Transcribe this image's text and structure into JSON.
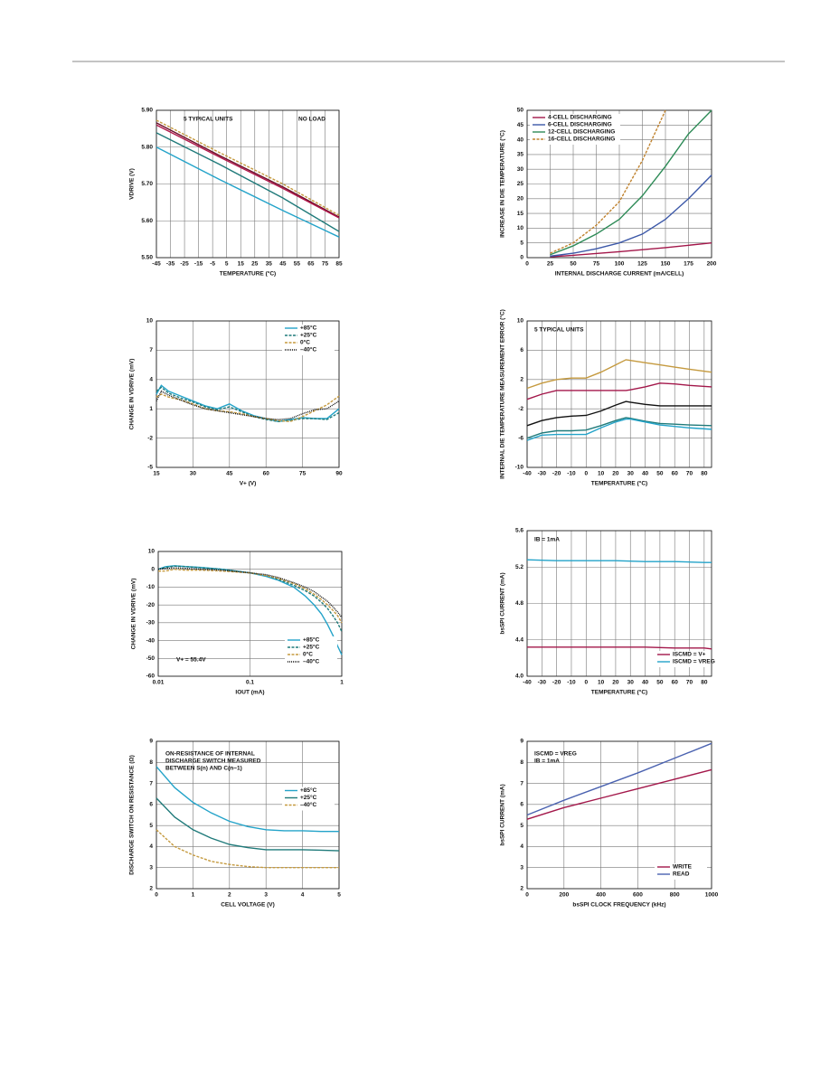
{
  "chart_data": [
    {
      "type": "line",
      "xlabel": "TEMPERATURE (°C)",
      "ylabel": "VDRIVE (V)",
      "xlim": [
        -45,
        85
      ],
      "xticks": [
        -45,
        -35,
        -25,
        -15,
        -5,
        5,
        15,
        25,
        35,
        45,
        55,
        65,
        75,
        85
      ],
      "ylim": [
        5.5,
        5.9
      ],
      "yticks": [
        {
          "value": 5.5,
          "label": "5.50"
        },
        {
          "value": 5.6,
          "label": "5.60"
        },
        {
          "value": 5.7,
          "label": "5.70"
        },
        {
          "value": 5.8,
          "label": "5.80"
        },
        {
          "value": 5.9,
          "label": "5.90"
        }
      ],
      "grid": true,
      "annotations": [
        [
          "5 TYPICAL UNITS"
        ],
        [
          "NO LOAD"
        ]
      ],
      "x": [
        -45,
        0,
        45,
        85
      ],
      "series": [
        {
          "color": "#c59a3f",
          "dash": true,
          "values": [
            5.873,
            5.785,
            5.7,
            5.615
          ]
        },
        {
          "color": "#6b0f2a",
          "values": [
            5.866,
            5.777,
            5.692,
            5.61
          ]
        },
        {
          "color": "#b0174a",
          "values": [
            5.86,
            5.773,
            5.688,
            5.608
          ]
        },
        {
          "color": "#1f7a7a",
          "values": [
            5.839,
            5.753,
            5.662,
            5.571
          ]
        },
        {
          "color": "#23a3c9",
          "values": [
            5.8,
            5.712,
            5.628,
            5.556
          ]
        }
      ]
    },
    {
      "type": "line",
      "xlabel": "INTERNAL DISCHARGE CURRENT (mA/CELL)",
      "ylabel": "INCREASE IN DIE TEMPERATURE (°C)",
      "xlim": [
        0,
        200
      ],
      "xticks": [
        0,
        25,
        50,
        75,
        100,
        125,
        150,
        175,
        200
      ],
      "ylim": [
        0,
        50
      ],
      "yticks": [
        0,
        5,
        10,
        15,
        20,
        25,
        30,
        35,
        40,
        45,
        50
      ],
      "grid": true,
      "legend": "upper left",
      "series": [
        {
          "name": "4-CELL DISCHARGING",
          "color": "#a3174a",
          "x": [
            25,
            50,
            100,
            150,
            200
          ],
          "values": [
            0.3,
            0.8,
            2,
            3.4,
            5
          ]
        },
        {
          "name": "6-CELL DISCHARGING",
          "color": "#3c58a8",
          "x": [
            25,
            50,
            75,
            100,
            125,
            150,
            175,
            200
          ],
          "values": [
            0.5,
            1.5,
            3,
            5,
            8,
            13,
            20,
            28
          ]
        },
        {
          "name": "12-CELL DISCHARGING",
          "color": "#2e8b57",
          "x": [
            25,
            50,
            75,
            100,
            125,
            150,
            175,
            200
          ],
          "values": [
            1,
            4,
            8,
            13,
            21,
            31,
            42,
            50
          ]
        },
        {
          "name": "16-CELL DISCHARGING",
          "color": "#c0832f",
          "dash": true,
          "x": [
            25,
            50,
            75,
            100,
            125,
            150
          ],
          "values": [
            1.5,
            5,
            11,
            19,
            33,
            50
          ]
        }
      ]
    },
    {
      "type": "line",
      "xlabel": "V+ (V)",
      "ylabel": "CHANGE IN VDRIVE (mV)",
      "xlim": [
        15,
        90
      ],
      "xticks": [
        15,
        30,
        45,
        60,
        75,
        90
      ],
      "ylim": [
        -5,
        10
      ],
      "yticks": [
        -5,
        -2,
        1,
        4,
        7,
        10
      ],
      "grid": true,
      "legend": "upper right",
      "x": [
        15,
        17,
        20,
        25,
        30,
        35,
        40,
        45,
        50,
        55,
        60,
        65,
        70,
        75,
        80,
        85,
        90
      ],
      "series": [
        {
          "name": "+85°C",
          "color": "#23a3c9",
          "values": [
            2.5,
            3.4,
            2.8,
            2.3,
            1.8,
            1.3,
            1.0,
            1.5,
            0.8,
            0.3,
            0.0,
            -0.3,
            -0.1,
            0.1,
            0.0,
            0.0,
            1.0
          ]
        },
        {
          "name": "+25°C",
          "color": "#1f7a7a",
          "dash": true,
          "values": [
            2.8,
            3.2,
            2.6,
            2.1,
            1.7,
            1.2,
            0.9,
            1.2,
            0.7,
            0.2,
            -0.1,
            -0.3,
            -0.2,
            0.0,
            0.0,
            -0.1,
            0.6
          ]
        },
        {
          "name": "0°C",
          "color": "#c59a3f",
          "dash": true,
          "values": [
            2.2,
            2.5,
            2.2,
            1.9,
            1.5,
            1.0,
            0.8,
            0.7,
            0.5,
            0.2,
            0.0,
            -0.2,
            -0.3,
            0.2,
            0.8,
            1.4,
            2.3
          ]
        },
        {
          "name": "–40°C",
          "color": "#111111",
          "dot": true,
          "values": [
            1.8,
            2.8,
            2.4,
            1.9,
            1.4,
            1.0,
            0.8,
            0.6,
            0.4,
            0.2,
            0.0,
            -0.1,
            0.0,
            0.5,
            0.9,
            1.0,
            1.8
          ]
        }
      ]
    },
    {
      "type": "line",
      "xlabel": "TEMPERATURE (°C)",
      "ylabel": "INTERNAL DIE TEMPERATURE MEASUREMENT ERROR (°C)",
      "xlim": [
        -40,
        85
      ],
      "xticks": [
        -40,
        -30,
        -20,
        -10,
        0,
        10,
        20,
        30,
        40,
        50,
        60,
        70,
        80
      ],
      "ylim": [
        -10,
        10
      ],
      "yticks": [
        -10,
        -6,
        -2,
        2,
        6,
        10
      ],
      "grid": true,
      "annotations": [
        [
          "5 TYPICAL UNITS"
        ]
      ],
      "x": [
        -40,
        -30,
        -20,
        -10,
        0,
        10,
        20,
        27,
        30,
        40,
        50,
        60,
        70,
        85
      ],
      "series": [
        {
          "color": "#c59a3f",
          "values": [
            0.8,
            1.5,
            2.0,
            2.2,
            2.2,
            3.0,
            4.0,
            4.7,
            4.6,
            4.3,
            4.0,
            3.7,
            3.4,
            3.0
          ]
        },
        {
          "color": "#a3174a",
          "values": [
            -0.7,
            0.0,
            0.5,
            0.5,
            0.5,
            0.5,
            0.5,
            0.5,
            0.6,
            1.0,
            1.5,
            1.4,
            1.2,
            1.0
          ]
        },
        {
          "color": "#111111",
          "values": [
            -4.3,
            -3.6,
            -3.2,
            -3.0,
            -2.9,
            -2.3,
            -1.5,
            -1.0,
            -1.1,
            -1.4,
            -1.6,
            -1.6,
            -1.6,
            -1.6
          ]
        },
        {
          "color": "#1f7a7a",
          "values": [
            -6.0,
            -5.3,
            -5.0,
            -5.0,
            -4.9,
            -4.3,
            -3.6,
            -3.2,
            -3.3,
            -3.7,
            -4.0,
            -4.1,
            -4.2,
            -4.3
          ]
        },
        {
          "color": "#23a3c9",
          "values": [
            -6.3,
            -5.6,
            -5.5,
            -5.5,
            -5.5,
            -4.6,
            -3.8,
            -3.4,
            -3.4,
            -3.8,
            -4.2,
            -4.4,
            -4.6,
            -4.8
          ]
        }
      ]
    },
    {
      "type": "line",
      "xlabel": "IOUT (mA)",
      "ylabel": "CHANGE IN VDRIVE (mV)",
      "xscale": "log",
      "xlim": [
        0.01,
        1
      ],
      "xticks": [
        0.01,
        0.1,
        1
      ],
      "ylim": [
        -60,
        10
      ],
      "yticks": [
        -60,
        -50,
        -40,
        -30,
        -20,
        -10,
        0,
        10
      ],
      "grid": true,
      "legend": "lower right",
      "annotations": [
        [
          "V+ = 55.4V"
        ]
      ],
      "x": [
        0.01,
        0.012,
        0.015,
        0.02,
        0.03,
        0.05,
        0.1,
        0.15,
        0.2,
        0.3,
        0.4,
        0.5,
        0.6,
        0.7,
        0.8,
        0.9,
        1
      ],
      "series": [
        {
          "name": "+85°C",
          "color": "#23a3c9",
          "values": [
            0,
            1.5,
            2,
            1.5,
            1,
            0,
            -2,
            -4,
            -6,
            -10,
            -15,
            -20,
            -25,
            -31,
            -37,
            -43,
            -48
          ]
        },
        {
          "name": "+25°C",
          "color": "#1f7a7a",
          "dash": true,
          "values": [
            0,
            1,
            1.8,
            1.5,
            0.8,
            0,
            -2,
            -3.5,
            -5.5,
            -9,
            -12,
            -15,
            -18.5,
            -22,
            -26,
            -30,
            -35
          ]
        },
        {
          "name": "0°C",
          "color": "#c59a3f",
          "dash": true,
          "values": [
            -1,
            -1,
            0,
            -0.5,
            -0.5,
            -1,
            -2,
            -3.5,
            -5,
            -8,
            -11,
            -14,
            -17,
            -20,
            -23,
            -26,
            -30
          ]
        },
        {
          "name": "–40°C",
          "color": "#111111",
          "dot": true,
          "values": [
            0,
            0.5,
            0.8,
            0.5,
            0,
            -0.5,
            -2,
            -3,
            -4.5,
            -7.5,
            -10,
            -12.5,
            -15.5,
            -18,
            -21,
            -24,
            -27
          ]
        }
      ]
    },
    {
      "type": "line",
      "xlabel": "TEMPERATURE (°C)",
      "ylabel": "bsSPI CURRENT (mA)",
      "xlim": [
        -40,
        85
      ],
      "xticks": [
        -40,
        -30,
        -20,
        -10,
        0,
        10,
        20,
        30,
        40,
        50,
        60,
        70,
        80
      ],
      "ylim": [
        4,
        5.6
      ],
      "yticks": [
        {
          "value": 4,
          "label": "4.0"
        },
        4.4,
        4.8,
        5.2,
        5.6
      ],
      "grid": true,
      "legend": "lower right",
      "annotations": [
        [
          "IB = 1mA"
        ]
      ],
      "x": [
        -40,
        -20,
        0,
        20,
        40,
        60,
        80,
        85
      ],
      "series": [
        {
          "name": "ISCMD = V+",
          "color": "#a3174a",
          "values": [
            4.32,
            4.32,
            4.32,
            4.32,
            4.32,
            4.31,
            4.31,
            4.3
          ]
        },
        {
          "name": "ISCMD = VREG",
          "color": "#23a3c9",
          "values": [
            5.28,
            5.27,
            5.27,
            5.27,
            5.26,
            5.26,
            5.25,
            5.25
          ]
        }
      ]
    },
    {
      "type": "line",
      "xlabel": "CELL VOLTAGE (V)",
      "ylabel": "DISCHARGE SWITCH ON RESISTANCE (Ω)",
      "xlim": [
        0,
        5
      ],
      "xticks": [
        0,
        1,
        2,
        3,
        4,
        5
      ],
      "ylim": [
        2,
        9
      ],
      "yticks": [
        2,
        3,
        4,
        5,
        6,
        7,
        8,
        9
      ],
      "grid": true,
      "legend": "center right",
      "annotations": [
        [
          "ON-RESISTANCE OF INTERNAL",
          "DISCHARGE SWITCH MEASURED",
          "BETWEEN S(n) AND C(n−1)"
        ]
      ],
      "x": [
        0,
        0.5,
        1,
        1.5,
        2,
        2.5,
        3,
        3.5,
        4,
        4.5,
        5
      ],
      "series": [
        {
          "name": "+85°C",
          "color": "#23a3c9",
          "values": [
            7.8,
            6.8,
            6.1,
            5.6,
            5.2,
            4.95,
            4.8,
            4.75,
            4.75,
            4.72,
            4.72
          ]
        },
        {
          "name": "+25°C",
          "color": "#1f7a7a",
          "values": [
            6.3,
            5.4,
            4.8,
            4.4,
            4.1,
            3.95,
            3.85,
            3.85,
            3.85,
            3.83,
            3.8
          ]
        },
        {
          "name": "–40°C",
          "color": "#c59a3f",
          "dash": true,
          "values": [
            4.8,
            4.0,
            3.6,
            3.3,
            3.15,
            3.05,
            3.0,
            3.0,
            3.0,
            3.0,
            3.0
          ]
        }
      ]
    },
    {
      "type": "line",
      "xlabel": "bsSPI CLOCK FREQUENCY (kHz)",
      "ylabel": "bsSPI CURRENT (mA)",
      "xlim": [
        0,
        1000
      ],
      "xticks": [
        0,
        200,
        400,
        600,
        800,
        1000
      ],
      "ylim": [
        2,
        9
      ],
      "yticks": [
        2,
        3,
        4,
        5,
        6,
        7,
        8,
        9
      ],
      "grid": true,
      "legend": "lower right",
      "annotations": [
        [
          "ISCMD = VREG",
          "IB = 1mA"
        ]
      ],
      "x": [
        0,
        200,
        400,
        600,
        800,
        1000
      ],
      "series": [
        {
          "name": "WRITE",
          "color": "#a3174a",
          "values": [
            5.3,
            5.85,
            6.3,
            6.75,
            7.2,
            7.65
          ]
        },
        {
          "name": "READ",
          "color": "#4a62b0",
          "values": [
            5.5,
            6.2,
            6.85,
            7.5,
            8.2,
            8.9
          ]
        }
      ]
    }
  ]
}
